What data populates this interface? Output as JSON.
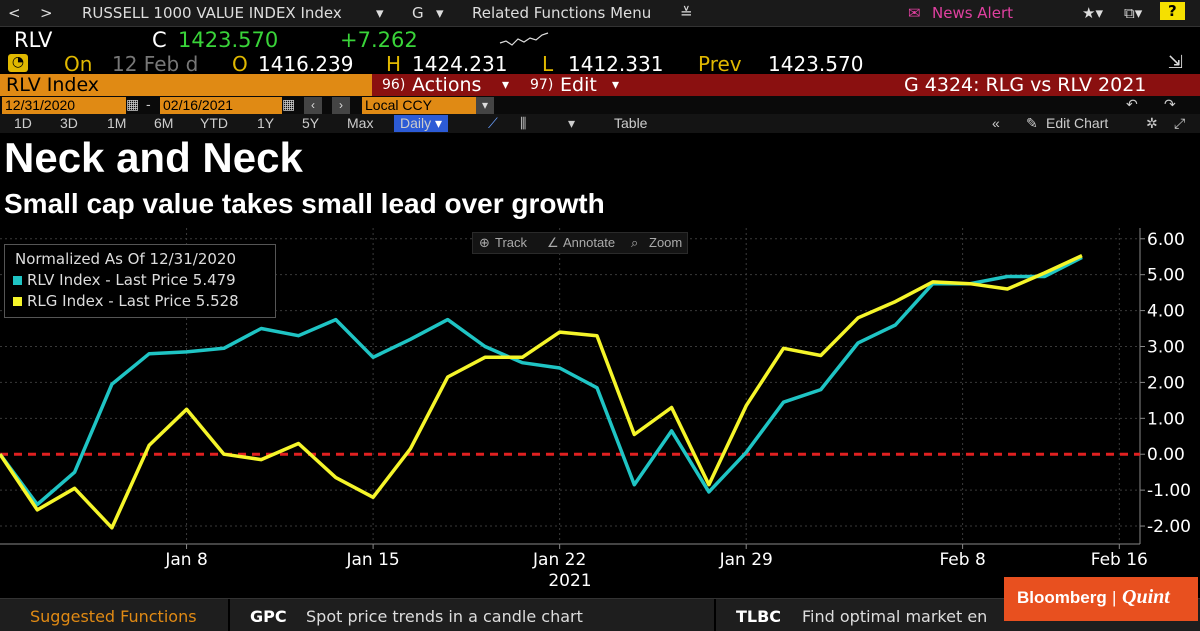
{
  "toolbar": {
    "nav_prev": "<",
    "nav_next": ">",
    "title": "RUSSELL 1000 VALUE INDEX Index",
    "chart_menu": "G",
    "related": "Related Functions Menu",
    "news_alert": "News Alert",
    "help": "?"
  },
  "ticker": {
    "symbol": "RLV",
    "close_label": "C",
    "close": "1423.570",
    "change": "+7.262",
    "on_label": "On",
    "date": "12 Feb d",
    "open_label": "O",
    "open": "1416.239",
    "high_label": "H",
    "high": "1424.231",
    "low_label": "L",
    "low": "1412.331",
    "prev_label": "Prev",
    "prev": "1423.570"
  },
  "band": {
    "security": "RLV Index",
    "actions_num": "96)",
    "actions": "Actions",
    "edit_num": "97)",
    "edit": "Edit",
    "chart_title": "G 4324: RLG vs RLV 2021"
  },
  "dates": {
    "start": "12/31/2020",
    "end": "02/16/2021",
    "currency": "Local CCY"
  },
  "ranges": {
    "items": [
      "1D",
      "3D",
      "1M",
      "6M",
      "YTD",
      "1Y",
      "5Y",
      "Max"
    ],
    "frequency": "Daily",
    "table": "Table",
    "edit_chart": "Edit Chart"
  },
  "tools": {
    "track": "Track",
    "annotate": "Annotate",
    "zoom": "Zoom"
  },
  "legend": {
    "title": "Normalized As Of 12/31/2020",
    "rlv": "RLV Index - Last Price 5.479",
    "rlg": "RLG Index - Last Price 5.528"
  },
  "footer": {
    "suggested": "Suggested Functions",
    "gpc_code": "GPC",
    "gpc_desc": "Spot price trends in a candle chart",
    "tlbc_code": "TLBC",
    "tlbc_desc": "Find optimal market en"
  },
  "logo": {
    "brand": "Bloomberg",
    "divider": "|",
    "partner": "Quint"
  },
  "colors": {
    "rlv": "#1fc4c4",
    "rlg": "#f5f52a",
    "zero": "#e02020",
    "green": "#39d439",
    "orange": "#e08a14"
  },
  "chart_data": {
    "type": "line",
    "title": "Neck and Neck",
    "subtitle": "Small cap value takes small lead over growth",
    "xlabel": "2021",
    "ylabel": "",
    "ylim": [
      -2.5,
      6.3
    ],
    "yticks": [
      6,
      5,
      4,
      3,
      2,
      1,
      0,
      -1,
      -2
    ],
    "ytick_labels": [
      "6.00",
      "5.00",
      "4.00",
      "3.00",
      "2.00",
      "1.00",
      "0.00",
      "-1.00",
      "-2.00"
    ],
    "xticks": [
      {
        "label": "Jan 8",
        "index": 5
      },
      {
        "label": "Jan 15",
        "index": 10
      },
      {
        "label": "Jan 22",
        "index": 15
      },
      {
        "label": "Jan 29",
        "index": 20
      },
      {
        "label": "Feb 8",
        "index": 25.8
      },
      {
        "label": "Feb 16",
        "index": 30
      }
    ],
    "x": [
      0,
      1,
      2,
      3,
      4,
      5,
      6,
      7,
      8,
      9,
      10,
      11,
      12,
      13,
      14,
      15,
      16,
      17,
      18,
      19,
      20,
      21,
      22,
      23,
      24,
      25,
      26,
      27,
      28,
      29
    ],
    "series": [
      {
        "name": "RLV Index",
        "values": [
          0.0,
          -1.4,
          -0.5,
          1.95,
          2.8,
          2.85,
          2.95,
          3.5,
          3.3,
          3.75,
          2.7,
          3.2,
          3.75,
          3.0,
          2.55,
          2.4,
          1.85,
          -0.85,
          0.65,
          -1.05,
          0.05,
          1.45,
          1.8,
          3.1,
          3.6,
          4.75,
          4.75,
          4.95,
          4.95,
          5.48
        ]
      },
      {
        "name": "RLG Index",
        "values": [
          0.0,
          -1.55,
          -0.95,
          -2.05,
          0.25,
          1.25,
          0.0,
          -0.15,
          0.3,
          -0.65,
          -1.2,
          0.15,
          2.15,
          2.7,
          2.7,
          3.4,
          3.3,
          0.55,
          1.3,
          -0.85,
          1.35,
          2.95,
          2.75,
          3.8,
          4.25,
          4.8,
          4.75,
          4.6,
          5.05,
          5.53
        ]
      }
    ],
    "reference_line": 0
  }
}
